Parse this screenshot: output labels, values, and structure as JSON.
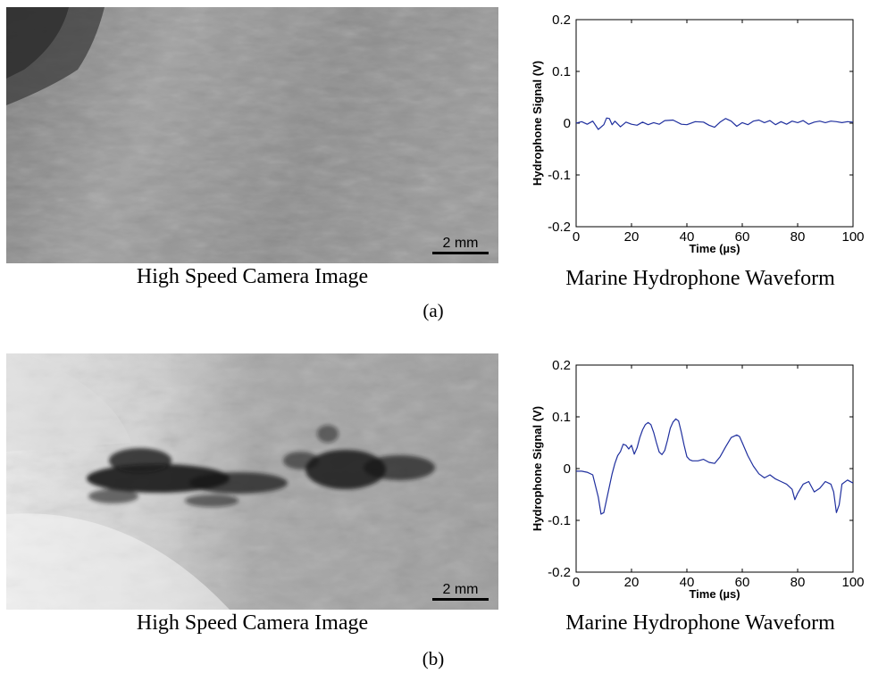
{
  "panels": [
    {
      "label": "(a)",
      "image": {
        "caption": "High Speed Camera Image",
        "scale_bar": "2 mm",
        "content": "grey textured tissue surface, no cavitation bubbles"
      },
      "chart_caption": "Marine Hydrophone Waveform"
    },
    {
      "label": "(b)",
      "image": {
        "caption": "High Speed Camera Image",
        "scale_bar": "2 mm",
        "content": "tissue surface with a dark horizontal cloud of cavitation bubbles"
      },
      "chart_caption": "Marine Hydrophone Waveform"
    }
  ],
  "chart_data": [
    {
      "type": "line",
      "xlabel": "Time (µs)",
      "ylabel": "Hydrophone Signal (V)",
      "xlim": [
        0,
        100
      ],
      "ylim": [
        -0.2,
        0.2
      ],
      "xticks": [
        0,
        20,
        40,
        60,
        80,
        100
      ],
      "yticks": [
        -0.2,
        -0.1,
        0,
        0.1,
        0.2
      ],
      "ytick_labels": [
        "-0.2",
        "-0.1",
        "0",
        "0.1",
        "0.2"
      ],
      "grid": false,
      "line_color": "#1f2f9e",
      "series": [
        {
          "x": [
            0,
            2,
            4,
            6,
            8,
            10,
            11,
            12,
            13,
            14,
            16,
            18,
            20,
            22,
            24,
            26,
            28,
            30,
            32,
            35,
            38,
            40,
            43,
            46,
            48,
            50,
            52,
            54,
            56,
            58,
            60,
            62,
            64,
            66,
            68,
            70,
            72,
            74,
            76,
            78,
            80,
            82,
            84,
            86,
            88,
            90,
            92,
            94,
            96,
            98,
            100
          ],
          "values": [
            0,
            0.003,
            -0.002,
            0.004,
            -0.012,
            -0.003,
            0.01,
            0.009,
            -0.003,
            0.004,
            -0.007,
            0.002,
            -0.002,
            -0.004,
            0.002,
            -0.003,
            0.001,
            -0.002,
            0.005,
            0.006,
            -0.002,
            -0.003,
            0.003,
            0.002,
            -0.004,
            -0.008,
            0.002,
            0.009,
            0.004,
            -0.006,
            0.001,
            -0.003,
            0.004,
            0.006,
            0.001,
            0.005,
            -0.003,
            0.003,
            -0.002,
            0.004,
            0.001,
            0.005,
            -0.002,
            0.002,
            0.004,
            0.001,
            0.004,
            0.003,
            0.001,
            0.003,
            0.002
          ]
        }
      ]
    },
    {
      "type": "line",
      "xlabel": "Time (µs)",
      "ylabel": "Hydrophone Signal (V)",
      "xlim": [
        0,
        100
      ],
      "ylim": [
        -0.2,
        0.2
      ],
      "xticks": [
        0,
        20,
        40,
        60,
        80,
        100
      ],
      "yticks": [
        -0.2,
        -0.1,
        0,
        0.1,
        0.2
      ],
      "ytick_labels": [
        "-0.2",
        "-0.1",
        "0",
        "0.1",
        "0.2"
      ],
      "grid": false,
      "line_color": "#1f2f9e",
      "series": [
        {
          "x": [
            0,
            2,
            4,
            6,
            8,
            9,
            10,
            11,
            12,
            13,
            14,
            15,
            16,
            17,
            18,
            19,
            20,
            21,
            22,
            23,
            24,
            25,
            26,
            27,
            28,
            29,
            30,
            31,
            32,
            33,
            34,
            35,
            36,
            37,
            38,
            39,
            40,
            41,
            42,
            44,
            46,
            48,
            50,
            52,
            54,
            56,
            58,
            59,
            60,
            62,
            64,
            66,
            68,
            70,
            72,
            74,
            76,
            78,
            79,
            80,
            82,
            84,
            86,
            88,
            90,
            92,
            93,
            94,
            95,
            96,
            98,
            100
          ],
          "values": [
            -0.005,
            -0.005,
            -0.007,
            -0.012,
            -0.055,
            -0.088,
            -0.085,
            -0.06,
            -0.035,
            -0.01,
            0.01,
            0.025,
            0.033,
            0.047,
            0.045,
            0.038,
            0.045,
            0.028,
            0.04,
            0.06,
            0.075,
            0.085,
            0.089,
            0.085,
            0.07,
            0.05,
            0.032,
            0.027,
            0.035,
            0.055,
            0.078,
            0.09,
            0.096,
            0.092,
            0.07,
            0.045,
            0.023,
            0.017,
            0.015,
            0.015,
            0.018,
            0.012,
            0.01,
            0.023,
            0.042,
            0.06,
            0.065,
            0.062,
            0.05,
            0.025,
            0.005,
            -0.01,
            -0.018,
            -0.012,
            -0.02,
            -0.025,
            -0.03,
            -0.04,
            -0.06,
            -0.048,
            -0.03,
            -0.025,
            -0.045,
            -0.038,
            -0.025,
            -0.03,
            -0.045,
            -0.085,
            -0.07,
            -0.03,
            -0.022,
            -0.028
          ]
        }
      ]
    }
  ]
}
